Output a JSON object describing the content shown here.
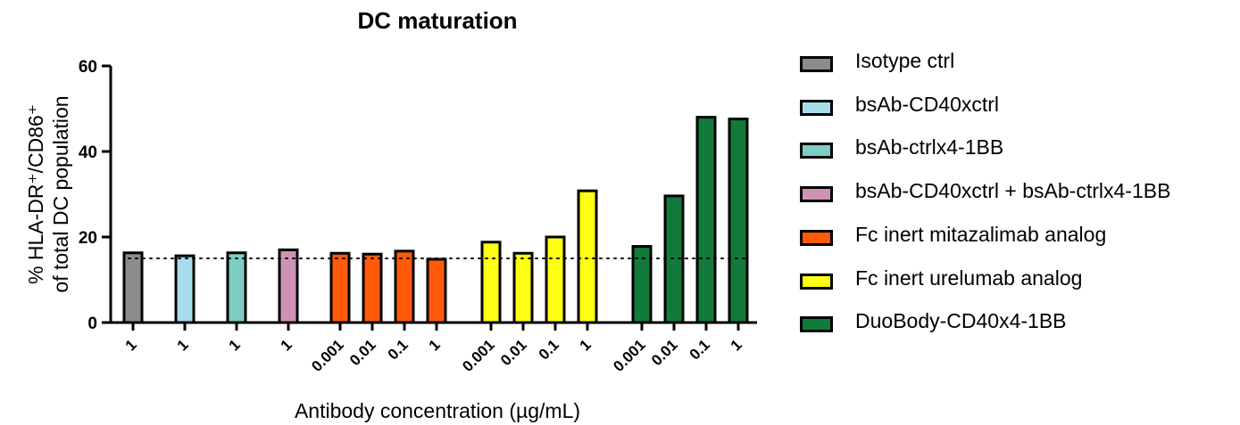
{
  "chart_data": {
    "type": "bar",
    "title": "DC maturation",
    "xlabel": "Antibody concentration (µg/mL)",
    "ylabel_line1": "% HLA-DR⁺/CD86⁺",
    "ylabel_line2": "of total DC population",
    "ylim": [
      0,
      60
    ],
    "yticks": [
      "0",
      "20",
      "40",
      "60"
    ],
    "reference_line": 15,
    "legend_position": "right",
    "series": [
      {
        "name": "Isotype ctrl",
        "color": "#8c8c8c",
        "categories": [
          "1"
        ],
        "values": [
          16.3
        ]
      },
      {
        "name": "bsAb-CD40xctrl",
        "color": "#a9dcea",
        "categories": [
          "1"
        ],
        "values": [
          15.6
        ]
      },
      {
        "name": "bsAb-ctrlx4-1BB",
        "color": "#7ecdc5",
        "categories": [
          "1"
        ],
        "values": [
          16.3
        ]
      },
      {
        "name": "bsAb-CD40xctrl + bsAb-ctrlx4-1BB",
        "color": "#cf92b7",
        "categories": [
          "1"
        ],
        "values": [
          17.0
        ]
      },
      {
        "name": "Fc inert mitazalimab analog",
        "color": "#ff5a0a",
        "categories": [
          "0.001",
          "0.01",
          "0.1",
          "1"
        ],
        "values": [
          16.2,
          16.0,
          16.7,
          14.8
        ]
      },
      {
        "name": "Fc inert urelumab analog",
        "color": "#ffff14",
        "categories": [
          "0.001",
          "0.01",
          "0.1",
          "1"
        ],
        "values": [
          18.8,
          16.2,
          20.0,
          30.8
        ]
      },
      {
        "name": "DuoBody-CD40x4-1BB",
        "color": "#127a3b",
        "categories": [
          "0.001",
          "0.01",
          "0.1",
          "1"
        ],
        "values": [
          17.8,
          29.6,
          48.0,
          47.6
        ]
      }
    ]
  }
}
